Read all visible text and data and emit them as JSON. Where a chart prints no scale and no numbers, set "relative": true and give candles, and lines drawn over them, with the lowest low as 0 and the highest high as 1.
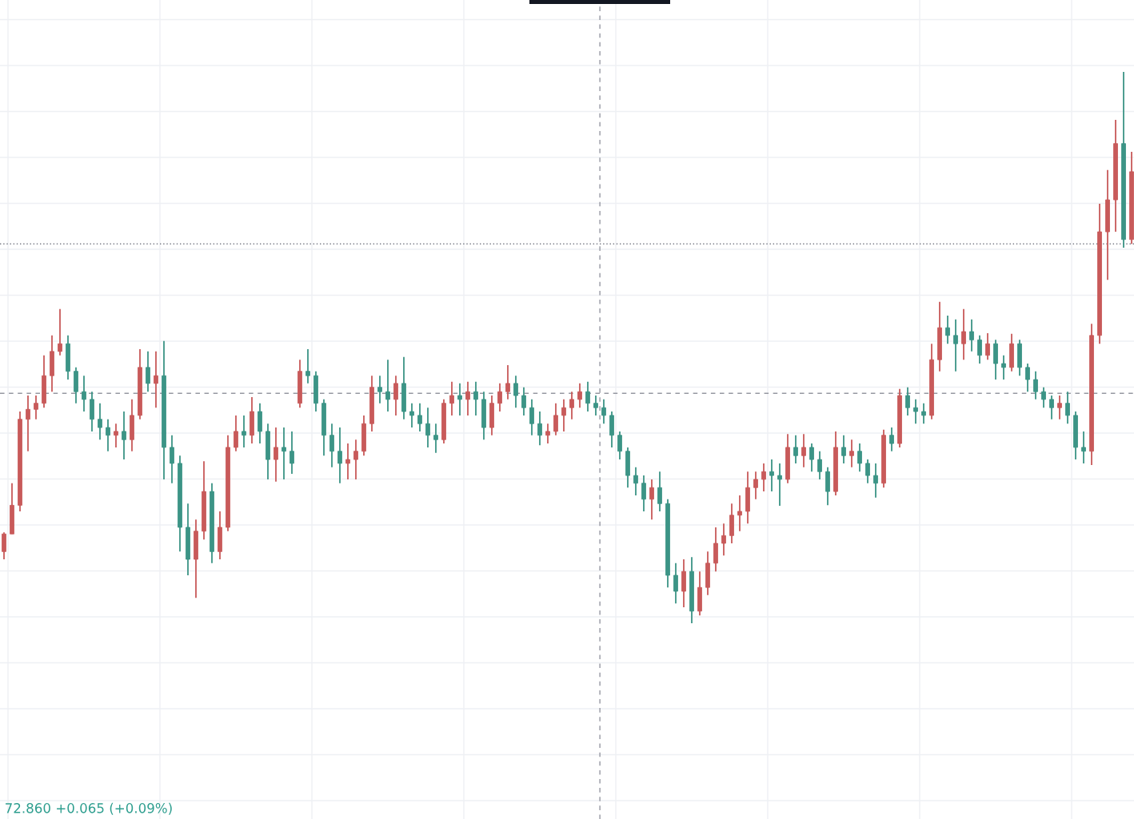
{
  "chart_data": {
    "type": "candlestick",
    "relative": true,
    "categories": [
      null,
      null,
      null,
      null,
      null,
      null,
      null,
      null,
      null,
      null,
      null,
      null,
      null,
      null,
      null,
      null,
      null,
      null,
      null,
      null,
      null,
      null,
      null,
      null,
      null,
      null,
      null,
      null,
      null,
      null,
      null,
      null,
      null,
      null,
      null,
      null,
      null,
      null,
      null,
      null,
      null,
      null,
      null,
      null,
      null,
      null,
      null,
      null,
      null,
      null,
      null,
      null,
      null,
      null,
      null,
      null,
      null,
      null,
      null,
      null,
      null,
      null,
      null,
      null,
      null,
      null,
      null,
      null,
      null,
      null,
      null,
      null,
      null,
      null,
      null,
      null,
      null,
      null,
      null,
      null,
      null,
      null,
      null,
      null,
      null,
      null,
      null,
      null,
      null,
      null,
      null,
      null,
      null,
      null,
      null,
      null,
      null,
      null,
      null,
      null,
      null,
      null,
      null,
      null,
      null,
      null,
      null,
      null,
      null,
      null,
      null,
      null,
      null,
      null,
      null,
      null,
      null,
      null,
      null,
      null,
      null,
      null,
      null,
      null,
      null,
      null,
      null,
      null,
      null,
      null,
      null,
      null,
      null,
      null,
      null,
      null,
      null,
      null,
      null,
      null,
      null,
      null
    ],
    "ohlc": [
      [
        0.13,
        0.165,
        0.116,
        0.162
      ],
      [
        0.162,
        0.254,
        0.162,
        0.214
      ],
      [
        0.214,
        0.384,
        0.203,
        0.37
      ],
      [
        0.37,
        0.413,
        0.312,
        0.388
      ],
      [
        0.388,
        0.413,
        0.37,
        0.399
      ],
      [
        0.399,
        0.486,
        0.391,
        0.449
      ],
      [
        0.449,
        0.522,
        0.42,
        0.493
      ],
      [
        0.493,
        0.57,
        0.486,
        0.507
      ],
      [
        0.507,
        0.522,
        0.442,
        0.457
      ],
      [
        0.457,
        0.464,
        0.399,
        0.42
      ],
      [
        0.42,
        0.449,
        0.384,
        0.406
      ],
      [
        0.406,
        0.42,
        0.348,
        0.37
      ],
      [
        0.37,
        0.399,
        0.333,
        0.355
      ],
      [
        0.355,
        0.37,
        0.312,
        0.341
      ],
      [
        0.341,
        0.362,
        0.319,
        0.348
      ],
      [
        0.348,
        0.384,
        0.297,
        0.333
      ],
      [
        0.333,
        0.406,
        0.312,
        0.377
      ],
      [
        0.377,
        0.497,
        0.37,
        0.464
      ],
      [
        0.464,
        0.493,
        0.42,
        0.435
      ],
      [
        0.435,
        0.493,
        0.391,
        0.449
      ],
      [
        0.449,
        0.512,
        0.261,
        0.319
      ],
      [
        0.319,
        0.341,
        0.254,
        0.29
      ],
      [
        0.29,
        0.304,
        0.13,
        0.174
      ],
      [
        0.174,
        0.217,
        0.087,
        0.116
      ],
      [
        0.116,
        0.188,
        0.046,
        0.167
      ],
      [
        0.167,
        0.294,
        0.152,
        0.239
      ],
      [
        0.239,
        0.254,
        0.109,
        0.13
      ],
      [
        0.13,
        0.203,
        0.116,
        0.174
      ],
      [
        0.174,
        0.341,
        0.167,
        0.319
      ],
      [
        0.319,
        0.377,
        0.312,
        0.348
      ],
      [
        0.348,
        0.377,
        0.319,
        0.341
      ],
      [
        0.341,
        0.41,
        0.326,
        0.384
      ],
      [
        0.384,
        0.399,
        0.326,
        0.348
      ],
      [
        0.348,
        0.362,
        0.261,
        0.297
      ],
      [
        0.297,
        0.355,
        0.257,
        0.319
      ],
      [
        0.319,
        0.355,
        0.261,
        0.312
      ],
      [
        0.312,
        0.348,
        0.271,
        0.29
      ],
      [
        0.399,
        0.478,
        0.391,
        0.457
      ],
      [
        0.457,
        0.497,
        0.435,
        0.449
      ],
      [
        0.449,
        0.457,
        0.384,
        0.399
      ],
      [
        0.399,
        0.406,
        0.304,
        0.341
      ],
      [
        0.341,
        0.362,
        0.283,
        0.312
      ],
      [
        0.312,
        0.355,
        0.254,
        0.29
      ],
      [
        0.29,
        0.326,
        0.261,
        0.297
      ],
      [
        0.297,
        0.333,
        0.261,
        0.312
      ],
      [
        0.312,
        0.377,
        0.304,
        0.362
      ],
      [
        0.362,
        0.449,
        0.348,
        0.428
      ],
      [
        0.428,
        0.449,
        0.399,
        0.42
      ],
      [
        0.42,
        0.478,
        0.384,
        0.406
      ],
      [
        0.406,
        0.449,
        0.377,
        0.435
      ],
      [
        0.435,
        0.483,
        0.37,
        0.384
      ],
      [
        0.384,
        0.399,
        0.355,
        0.377
      ],
      [
        0.377,
        0.399,
        0.348,
        0.362
      ],
      [
        0.362,
        0.391,
        0.319,
        0.341
      ],
      [
        0.341,
        0.362,
        0.309,
        0.333
      ],
      [
        0.333,
        0.406,
        0.326,
        0.399
      ],
      [
        0.399,
        0.438,
        0.377,
        0.413
      ],
      [
        0.413,
        0.435,
        0.377,
        0.406
      ],
      [
        0.406,
        0.438,
        0.377,
        0.42
      ],
      [
        0.42,
        0.438,
        0.377,
        0.406
      ],
      [
        0.406,
        0.42,
        0.333,
        0.355
      ],
      [
        0.355,
        0.413,
        0.341,
        0.399
      ],
      [
        0.399,
        0.435,
        0.384,
        0.42
      ],
      [
        0.42,
        0.468,
        0.406,
        0.435
      ],
      [
        0.435,
        0.449,
        0.391,
        0.413
      ],
      [
        0.413,
        0.428,
        0.377,
        0.391
      ],
      [
        0.391,
        0.406,
        0.341,
        0.362
      ],
      [
        0.362,
        0.384,
        0.323,
        0.341
      ],
      [
        0.341,
        0.362,
        0.326,
        0.348
      ],
      [
        0.348,
        0.399,
        0.341,
        0.377
      ],
      [
        0.377,
        0.406,
        0.348,
        0.391
      ],
      [
        0.391,
        0.42,
        0.37,
        0.406
      ],
      [
        0.406,
        0.435,
        0.391,
        0.42
      ],
      [
        0.42,
        0.438,
        0.384,
        0.399
      ],
      [
        0.399,
        0.413,
        0.377,
        0.391
      ],
      [
        0.391,
        0.406,
        0.362,
        0.377
      ],
      [
        0.377,
        0.384,
        0.319,
        0.341
      ],
      [
        0.341,
        0.348,
        0.297,
        0.312
      ],
      [
        0.312,
        0.319,
        0.246,
        0.268
      ],
      [
        0.268,
        0.283,
        0.232,
        0.254
      ],
      [
        0.254,
        0.268,
        0.203,
        0.225
      ],
      [
        0.225,
        0.261,
        0.188,
        0.246
      ],
      [
        0.246,
        0.275,
        0.203,
        0.217
      ],
      [
        0.217,
        0.225,
        0.065,
        0.087
      ],
      [
        0.087,
        0.109,
        0.036,
        0.058
      ],
      [
        0.058,
        0.116,
        0.029,
        0.094
      ],
      [
        0.094,
        0.12,
        0.0,
        0.022
      ],
      [
        0.022,
        0.094,
        0.014,
        0.065
      ],
      [
        0.065,
        0.13,
        0.051,
        0.109
      ],
      [
        0.109,
        0.174,
        0.094,
        0.145
      ],
      [
        0.145,
        0.181,
        0.123,
        0.159
      ],
      [
        0.159,
        0.217,
        0.145,
        0.196
      ],
      [
        0.196,
        0.232,
        0.167,
        0.203
      ],
      [
        0.203,
        0.275,
        0.181,
        0.246
      ],
      [
        0.246,
        0.275,
        0.225,
        0.261
      ],
      [
        0.261,
        0.29,
        0.239,
        0.275
      ],
      [
        0.275,
        0.297,
        0.239,
        0.268
      ],
      [
        0.268,
        0.29,
        0.213,
        0.261
      ],
      [
        0.261,
        0.343,
        0.254,
        0.319
      ],
      [
        0.319,
        0.341,
        0.29,
        0.304
      ],
      [
        0.304,
        0.343,
        0.283,
        0.319
      ],
      [
        0.319,
        0.326,
        0.275,
        0.297
      ],
      [
        0.297,
        0.312,
        0.261,
        0.275
      ],
      [
        0.275,
        0.283,
        0.214,
        0.239
      ],
      [
        0.239,
        0.348,
        0.232,
        0.319
      ],
      [
        0.319,
        0.341,
        0.29,
        0.304
      ],
      [
        0.304,
        0.333,
        0.283,
        0.312
      ],
      [
        0.312,
        0.326,
        0.275,
        0.29
      ],
      [
        0.29,
        0.297,
        0.254,
        0.268
      ],
      [
        0.268,
        0.29,
        0.228,
        0.254
      ],
      [
        0.254,
        0.351,
        0.246,
        0.341
      ],
      [
        0.341,
        0.355,
        0.312,
        0.326
      ],
      [
        0.326,
        0.425,
        0.319,
        0.413
      ],
      [
        0.413,
        0.428,
        0.377,
        0.391
      ],
      [
        0.391,
        0.406,
        0.362,
        0.384
      ],
      [
        0.384,
        0.399,
        0.362,
        0.377
      ],
      [
        0.377,
        0.507,
        0.37,
        0.478
      ],
      [
        0.478,
        0.583,
        0.457,
        0.536
      ],
      [
        0.536,
        0.558,
        0.507,
        0.522
      ],
      [
        0.522,
        0.551,
        0.457,
        0.507
      ],
      [
        0.507,
        0.57,
        0.478,
        0.529
      ],
      [
        0.529,
        0.551,
        0.493,
        0.514
      ],
      [
        0.514,
        0.522,
        0.471,
        0.486
      ],
      [
        0.486,
        0.526,
        0.478,
        0.507
      ],
      [
        0.507,
        0.514,
        0.442,
        0.471
      ],
      [
        0.471,
        0.486,
        0.442,
        0.464
      ],
      [
        0.464,
        0.525,
        0.457,
        0.507
      ],
      [
        0.507,
        0.514,
        0.449,
        0.464
      ],
      [
        0.464,
        0.471,
        0.42,
        0.442
      ],
      [
        0.442,
        0.457,
        0.406,
        0.42
      ],
      [
        0.42,
        0.428,
        0.391,
        0.406
      ],
      [
        0.406,
        0.413,
        0.37,
        0.391
      ],
      [
        0.391,
        0.413,
        0.37,
        0.399
      ],
      [
        0.399,
        0.42,
        0.362,
        0.377
      ],
      [
        0.377,
        0.384,
        0.297,
        0.319
      ],
      [
        0.319,
        0.348,
        0.29,
        0.312
      ],
      [
        0.312,
        0.543,
        0.287,
        0.522
      ],
      [
        0.522,
        0.761,
        0.507,
        0.71
      ],
      [
        0.71,
        0.822,
        0.623,
        0.768
      ],
      [
        0.768,
        0.913,
        0.71,
        0.87
      ],
      [
        0.87,
        1.0,
        0.681,
        0.696
      ],
      [
        0.696,
        0.855,
        0.688,
        0.819
      ]
    ],
    "colors": [
      "#c85a5a",
      "#c85a5a",
      "#c85a5a",
      "#c85a5a",
      "#c85a5a",
      "#c85a5a",
      "#c85a5a",
      "#c85a5a",
      "#3c9486",
      "#3c9486",
      "#3c9486",
      "#3c9486",
      "#3c9486",
      "#3c9486",
      "#c85a5a",
      "#3c9486",
      "#c85a5a",
      "#c85a5a",
      "#3c9486",
      "#c85a5a",
      "#3c9486",
      "#3c9486",
      "#3c9486",
      "#3c9486",
      "#c85a5a",
      "#c85a5a",
      "#3c9486",
      "#c85a5a",
      "#c85a5a",
      "#c85a5a",
      "#3c9486",
      "#c85a5a",
      "#3c9486",
      "#3c9486",
      "#c85a5a",
      "#3c9486",
      "#3c9486",
      "#c85a5a",
      "#3c9486",
      "#3c9486",
      "#3c9486",
      "#3c9486",
      "#3c9486",
      "#c85a5a",
      "#c85a5a",
      "#c85a5a",
      "#c85a5a",
      "#3c9486",
      "#3c9486",
      "#c85a5a",
      "#3c9486",
      "#3c9486",
      "#3c9486",
      "#3c9486",
      "#3c9486",
      "#c85a5a",
      "#c85a5a",
      "#3c9486",
      "#c85a5a",
      "#3c9486",
      "#3c9486",
      "#c85a5a",
      "#c85a5a",
      "#c85a5a",
      "#3c9486",
      "#3c9486",
      "#3c9486",
      "#3c9486",
      "#c85a5a",
      "#c85a5a",
      "#c85a5a",
      "#c85a5a",
      "#c85a5a",
      "#3c9486",
      "#3c9486",
      "#3c9486",
      "#3c9486",
      "#3c9486",
      "#3c9486",
      "#3c9486",
      "#3c9486",
      "#c85a5a",
      "#3c9486",
      "#3c9486",
      "#3c9486",
      "#c85a5a",
      "#3c9486",
      "#c85a5a",
      "#c85a5a",
      "#c85a5a",
      "#c85a5a",
      "#c85a5a",
      "#c85a5a",
      "#c85a5a",
      "#c85a5a",
      "#c85a5a",
      "#3c9486",
      "#3c9486",
      "#c85a5a",
      "#3c9486",
      "#c85a5a",
      "#3c9486",
      "#3c9486",
      "#3c9486",
      "#c85a5a",
      "#3c9486",
      "#c85a5a",
      "#3c9486",
      "#3c9486",
      "#3c9486",
      "#c85a5a",
      "#3c9486",
      "#c85a5a",
      "#3c9486",
      "#3c9486",
      "#3c9486",
      "#c85a5a",
      "#c85a5a",
      "#3c9486",
      "#3c9486",
      "#c85a5a",
      "#3c9486",
      "#3c9486",
      "#c85a5a",
      "#3c9486",
      "#3c9486",
      "#c85a5a",
      "#3c9486",
      "#3c9486",
      "#3c9486",
      "#3c9486",
      "#3c9486",
      "#c85a5a",
      "#3c9486",
      "#3c9486",
      "#3c9486",
      "#c85a5a",
      "#c85a5a",
      "#c85a5a",
      "#c85a5a",
      "#3c9486",
      "#c85a5a"
    ],
    "ref_lines": [
      {
        "axis": "y",
        "value": 0.417,
        "line_style": "dashed",
        "color": "#9598a1"
      },
      {
        "axis": "y",
        "value": 0.688,
        "line_style": "dotted",
        "color": "#787b86"
      }
    ],
    "annotations": [
      "72.860 +0.065 (+0.09%)"
    ],
    "grid": true
  }
}
